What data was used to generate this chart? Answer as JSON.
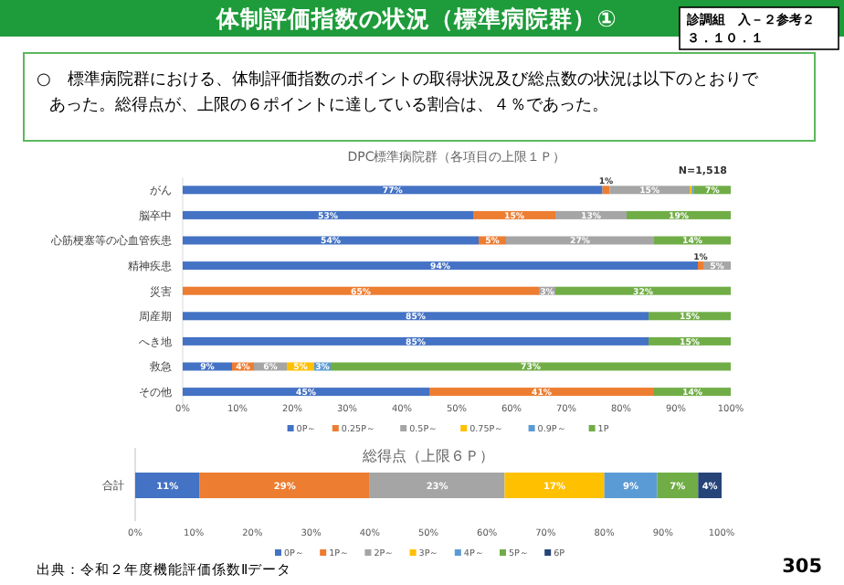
{
  "chart_data": [
    {
      "type": "other",
      "title": "体制評価指数の状況（標準病院群）①",
      "annotations": [
        "診調組　入－２参考２３．１０．１",
        "○　標準病院群における、体制評価指数のポイントの取得状況及び総点数の状況は以下のとおりであった。総得点が、上限の６ポイントに達している割合は、４％であった。",
        "出典：令和２年度機能評価係数Ⅱデータ",
        "305"
      ]
    },
    {
      "type": "bar",
      "orientation": "horizontal",
      "stacked": true,
      "title": "DPC標準病院群（各項目の上限１Ｐ）",
      "annotations": [
        "N=1,518"
      ],
      "legend": "bottom",
      "categories": [
        "がん",
        "脳卒中",
        "心筋梗塞等の心血管疾患",
        "精神疾患",
        "災害",
        "周産期",
        "へき地",
        "救急",
        "その他"
      ],
      "xlim": [
        0,
        100
      ],
      "xticks": [
        {
          "value": 0,
          "label": "0%"
        },
        {
          "value": 10,
          "label": "10%"
        },
        {
          "value": 20,
          "label": "20%"
        },
        {
          "value": 30,
          "label": "30%"
        },
        {
          "value": 40,
          "label": "40%"
        },
        {
          "value": 50,
          "label": "50%"
        },
        {
          "value": 60,
          "label": "60%"
        },
        {
          "value": 70,
          "label": "70%"
        },
        {
          "value": 80,
          "label": "80%"
        },
        {
          "value": 90,
          "label": "90%"
        },
        {
          "value": 100,
          "label": "100%"
        }
      ],
      "series": [
        {
          "name": "0P～",
          "color": "#4472c4",
          "values": [
            76.6,
            53,
            54,
            94,
            0,
            85,
            85,
            9,
            45
          ],
          "value_labels": [
            "77%",
            "53%",
            "54%",
            "94%",
            null,
            "85%",
            "85%",
            "9%",
            "45%"
          ]
        },
        {
          "name": "0.25P～",
          "color": "#ed7d31",
          "values": [
            1.3,
            15,
            5,
            1,
            65,
            0,
            0,
            4,
            41
          ],
          "value_labels": [
            "1%",
            "15%",
            "5%",
            "1%",
            "65%",
            null,
            null,
            "4%",
            "41%"
          ]
        },
        {
          "name": "0.5P～",
          "color": "#a5a5a5",
          "values": [
            14.6,
            13,
            27,
            5,
            3,
            0,
            0,
            6,
            0
          ],
          "value_labels": [
            "15%",
            "13%",
            "27%",
            "5%",
            "3%",
            null,
            null,
            "6%",
            null
          ]
        },
        {
          "name": "0.75P～",
          "color": "#ffc000",
          "values": [
            0.4,
            0,
            0,
            0,
            0,
            0,
            0,
            5,
            0
          ],
          "value_labels": [
            null,
            null,
            null,
            null,
            null,
            null,
            null,
            "5%",
            null
          ]
        },
        {
          "name": "0.9P～",
          "color": "#5b9bd5",
          "values": [
            0.4,
            0,
            0,
            0,
            0,
            0,
            0,
            3,
            0
          ],
          "value_labels": [
            null,
            null,
            null,
            null,
            null,
            null,
            null,
            "3%",
            null
          ]
        },
        {
          "name": "1P",
          "color": "#70ad47",
          "values": [
            6.7,
            19,
            14,
            0,
            32,
            15,
            15,
            73,
            14
          ],
          "value_labels": [
            "7%",
            "19%",
            "14%",
            null,
            "32%",
            "15%",
            "15%",
            "73%",
            "14%"
          ]
        }
      ]
    },
    {
      "type": "bar",
      "orientation": "horizontal",
      "stacked": true,
      "title": "総得点（上限６Ｐ）",
      "legend": "bottom",
      "categories": [
        "合計"
      ],
      "xlim": [
        0,
        100
      ],
      "xticks": [
        {
          "value": 0,
          "label": "0%"
        },
        {
          "value": 10,
          "label": "10%"
        },
        {
          "value": 20,
          "label": "20%"
        },
        {
          "value": 30,
          "label": "30%"
        },
        {
          "value": 40,
          "label": "40%"
        },
        {
          "value": 50,
          "label": "50%"
        },
        {
          "value": 60,
          "label": "60%"
        },
        {
          "value": 70,
          "label": "70%"
        },
        {
          "value": 80,
          "label": "80%"
        },
        {
          "value": 90,
          "label": "90%"
        },
        {
          "value": 100,
          "label": "100%"
        }
      ],
      "series": [
        {
          "name": "0P～",
          "color": "#4472c4",
          "values": [
            11
          ],
          "value_labels": [
            "11%"
          ]
        },
        {
          "name": "1P～",
          "color": "#ed7d31",
          "values": [
            29
          ],
          "value_labels": [
            "29%"
          ]
        },
        {
          "name": "2P～",
          "color": "#a5a5a5",
          "values": [
            23
          ],
          "value_labels": [
            "23%"
          ]
        },
        {
          "name": "3P～",
          "color": "#ffc000",
          "values": [
            17
          ],
          "value_labels": [
            "17%"
          ]
        },
        {
          "name": "4P～",
          "color": "#5b9bd5",
          "values": [
            9
          ],
          "value_labels": [
            "9%"
          ]
        },
        {
          "name": "5P～",
          "color": "#70ad47",
          "values": [
            7
          ],
          "value_labels": [
            "7%"
          ]
        },
        {
          "name": "6P",
          "color": "#264478",
          "values": [
            4
          ],
          "value_labels": [
            "4%"
          ]
        }
      ]
    }
  ]
}
